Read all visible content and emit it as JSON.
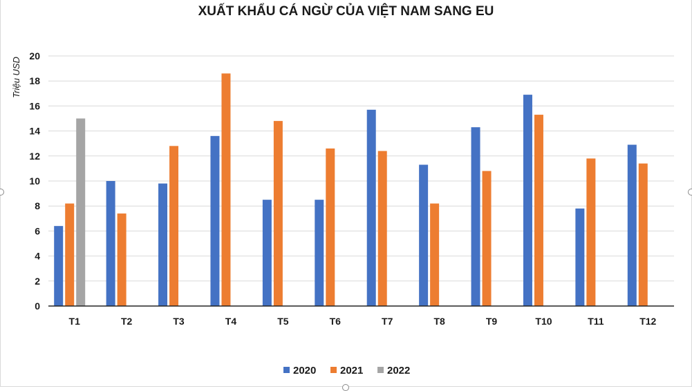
{
  "chart_data": {
    "type": "bar",
    "title": "XUẤT KHẨU CÁ NGỪ CỦA VIỆT NAM SANG EU",
    "ylabel": "Triệu USD",
    "xlabel": "",
    "ylim": [
      0,
      20
    ],
    "yticks": [
      0,
      2,
      4,
      6,
      8,
      10,
      12,
      14,
      16,
      18,
      20
    ],
    "grid": true,
    "legend_position": "bottom",
    "categories": [
      "T1",
      "T2",
      "T3",
      "T4",
      "T5",
      "T6",
      "T7",
      "T8",
      "T9",
      "T10",
      "T11",
      "T12"
    ],
    "series": [
      {
        "name": "2020",
        "color": "#4472c4",
        "values": [
          6.4,
          10.0,
          9.8,
          13.6,
          8.5,
          8.5,
          15.7,
          11.3,
          14.3,
          16.9,
          7.8,
          12.9
        ]
      },
      {
        "name": "2021",
        "color": "#ed7d31",
        "values": [
          8.2,
          7.4,
          12.8,
          18.6,
          14.8,
          12.6,
          12.4,
          8.2,
          10.8,
          15.3,
          11.8,
          11.4
        ]
      },
      {
        "name": "2022",
        "color": "#a5a5a5",
        "values": [
          15.0,
          null,
          null,
          null,
          null,
          null,
          null,
          null,
          null,
          null,
          null,
          null
        ]
      }
    ]
  }
}
